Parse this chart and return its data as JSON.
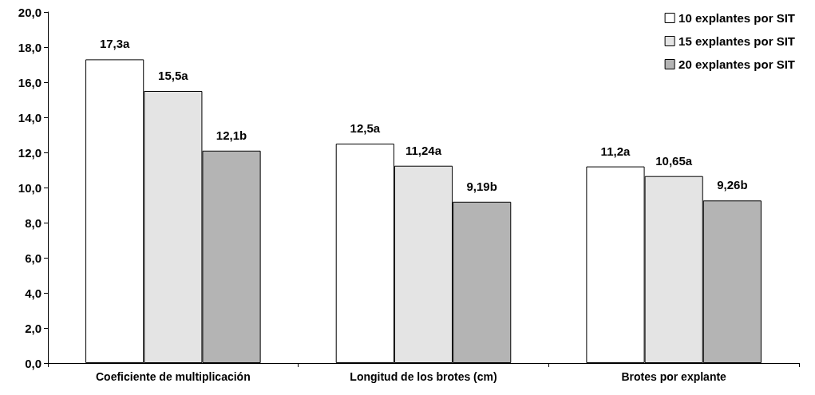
{
  "chart_data": {
    "type": "bar",
    "categories": [
      "Coeficiente de multiplicación",
      "Longitud de los brotes (cm)",
      "Brotes por explante"
    ],
    "series": [
      {
        "name": "10 explantes por SIT",
        "color": "#ffffff",
        "values": [
          17.3,
          12.5,
          11.2
        ],
        "value_labels": [
          "17,3a",
          "12,5a",
          "11,2a"
        ]
      },
      {
        "name": "15 explantes por SIT",
        "color": "#e4e4e4",
        "values": [
          15.5,
          11.24,
          10.65
        ],
        "value_labels": [
          "15,5a",
          "11,24a",
          "10,65a"
        ]
      },
      {
        "name": "20 explantes por SIT",
        "color": "#b4b4b4",
        "values": [
          12.1,
          9.19,
          9.26
        ],
        "value_labels": [
          "12,1b",
          "9,19b",
          "9,26b"
        ]
      }
    ],
    "ylim": [
      0,
      20
    ],
    "yticks": [
      {
        "value": 0,
        "label": "0,0"
      },
      {
        "value": 2,
        "label": "2,0"
      },
      {
        "value": 4,
        "label": "4,0"
      },
      {
        "value": 6,
        "label": "6,0"
      },
      {
        "value": 8,
        "label": "8,0"
      },
      {
        "value": 10,
        "label": "10,0"
      },
      {
        "value": 12,
        "label": "12,0"
      },
      {
        "value": 14,
        "label": "14,0"
      },
      {
        "value": 16,
        "label": "16,0"
      },
      {
        "value": 18,
        "label": "18,0"
      },
      {
        "value": 20,
        "label": "20,0"
      }
    ],
    "grid": false,
    "legend": "top right"
  }
}
